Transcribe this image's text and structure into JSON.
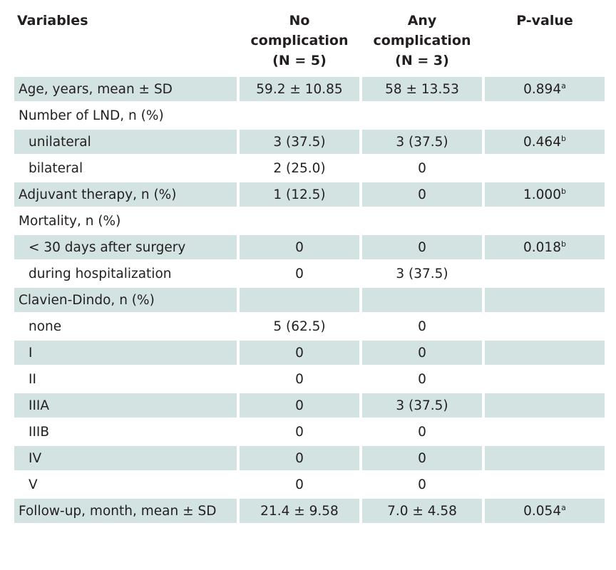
{
  "table": {
    "headers": [
      {
        "lines": [
          "Variables"
        ]
      },
      {
        "lines": [
          "No",
          "complication",
          "(N = 5)"
        ]
      },
      {
        "lines": [
          "Any",
          "complication",
          "(N = 3)"
        ]
      },
      {
        "lines": [
          "P-value"
        ]
      }
    ],
    "rows": [
      {
        "label": "Age, years, mean ± SD",
        "indent": false,
        "shade": true,
        "no": "59.2 ± 10.85",
        "any": "58 ± 13.53",
        "p": "0.894",
        "sup": "a",
        "cells": 4
      },
      {
        "label": "Number of LND, n (%)",
        "indent": false,
        "shade": false,
        "no": "",
        "any": "",
        "p": "",
        "sup": "",
        "cells": 4
      },
      {
        "label": "unilateral",
        "indent": true,
        "shade": true,
        "no": "3 (37.5)",
        "any": "3 (37.5)",
        "p": "0.464",
        "sup": "b",
        "cells": 4
      },
      {
        "label": "bilateral",
        "indent": true,
        "shade": false,
        "no": "2 (25.0)",
        "any": "0",
        "p": "",
        "sup": "",
        "cells": 4
      },
      {
        "label": "Adjuvant therapy, n (%)",
        "indent": false,
        "shade": true,
        "no": "1 (12.5)",
        "any": "0",
        "p": "1.000",
        "sup": "b",
        "cells": 4
      },
      {
        "label": "Mortality, n (%)",
        "indent": false,
        "shade": false,
        "no": "",
        "any": "",
        "p": "",
        "sup": "",
        "cells": 4
      },
      {
        "label": "< 30 days after surgery",
        "indent": true,
        "shade": true,
        "no": "0",
        "any": "0",
        "p": "0.018",
        "sup": "b",
        "cells": 4
      },
      {
        "label": "during hospitalization",
        "indent": true,
        "shade": false,
        "no": "0",
        "any": "3 (37.5)",
        "p": "",
        "sup": "",
        "cells": 4
      },
      {
        "label": "Clavien-Dindo, n (%)",
        "indent": false,
        "shade": true,
        "no": "",
        "any": "",
        "p": "",
        "sup": "",
        "cells": 4
      },
      {
        "label": "none",
        "indent": true,
        "shade": false,
        "no": "5 (62.5)",
        "any": "0",
        "p": "",
        "sup": "",
        "cells": 4
      },
      {
        "label": "I",
        "indent": true,
        "shade": true,
        "no": "0",
        "any": "0",
        "p": "",
        "sup": "",
        "cells": 4
      },
      {
        "label": "II",
        "indent": true,
        "shade": false,
        "no": "0",
        "any": "0",
        "p": "",
        "sup": "",
        "cells": 4
      },
      {
        "label": "IIIA",
        "indent": true,
        "shade": true,
        "no": "0",
        "any": "3 (37.5)",
        "p": "",
        "sup": "",
        "cells": 4
      },
      {
        "label": "IIIB",
        "indent": true,
        "shade": false,
        "no": "0",
        "any": "0",
        "p": "",
        "sup": "",
        "cells": 4
      },
      {
        "label": "IV",
        "indent": true,
        "shade": true,
        "no": "0",
        "any": "0",
        "p": "",
        "sup": "",
        "cells": 4
      },
      {
        "label": "V",
        "indent": true,
        "shade": false,
        "no": "0",
        "any": "0",
        "p": "",
        "sup": "",
        "cells": 4
      },
      {
        "label": "Follow-up, month, mean ± SD",
        "indent": false,
        "shade": true,
        "no": "21.4 ± 9.58",
        "any": "7.0 ± 4.58",
        "p": "0.054",
        "sup": "a",
        "cells": 4
      }
    ],
    "colors": {
      "shade": "#d3e3e2",
      "text": "#231f20"
    }
  }
}
